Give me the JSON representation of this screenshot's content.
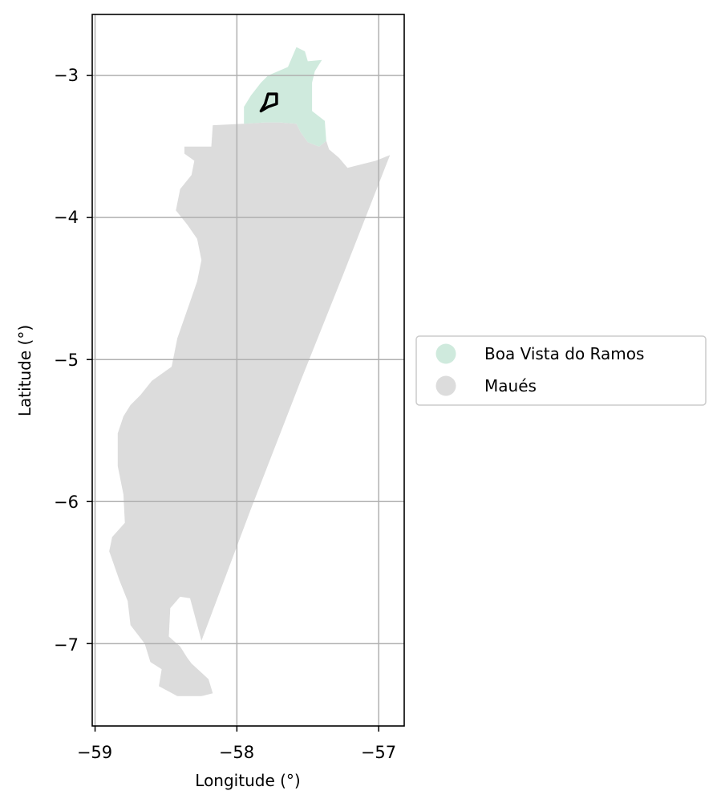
{
  "map": {
    "xlabel": "Longitude (°)",
    "ylabel": "Latitude (°)",
    "x_ticks": [
      "−59",
      "−58",
      "−57"
    ],
    "y_ticks": [
      "−3",
      "−4",
      "−5",
      "−6",
      "−7"
    ],
    "grid": true,
    "legend_placement": "center-right, outside plot",
    "legend": [
      {
        "label": "Boa Vista do Ramos",
        "color": "#cfeadd"
      },
      {
        "label": "Maués",
        "color": "#dcdcdc"
      }
    ],
    "highlight_outline_color": "#000000"
  },
  "chart_data": {
    "type": "map",
    "xlabel": "Longitude (°)",
    "ylabel": "Latitude (°)",
    "xlim": [
      -59.02,
      -56.82
    ],
    "ylim": [
      -7.58,
      -2.57
    ],
    "x_ticks": [
      -59,
      -58,
      -57
    ],
    "y_ticks": [
      -3,
      -4,
      -5,
      -6,
      -7
    ],
    "grid": true,
    "regions": [
      {
        "name": "Boa Vista do Ramos",
        "color": "#cfeadd",
        "polygon": [
          [
            -57.95,
            -3.34
          ],
          [
            -57.95,
            -3.22
          ],
          [
            -57.9,
            -3.14
          ],
          [
            -57.83,
            -3.05
          ],
          [
            -57.78,
            -3.0
          ],
          [
            -57.64,
            -2.94
          ],
          [
            -57.58,
            -2.8
          ],
          [
            -57.52,
            -2.83
          ],
          [
            -57.5,
            -2.9
          ],
          [
            -57.4,
            -2.89
          ],
          [
            -57.45,
            -2.97
          ],
          [
            -57.47,
            -3.05
          ],
          [
            -57.47,
            -3.25
          ],
          [
            -57.38,
            -3.32
          ],
          [
            -57.37,
            -3.46
          ],
          [
            -57.42,
            -3.5
          ],
          [
            -57.5,
            -3.47
          ],
          [
            -57.55,
            -3.4
          ],
          [
            -57.58,
            -3.34
          ],
          [
            -57.7,
            -3.33
          ],
          [
            -57.8,
            -3.33
          ]
        ]
      },
      {
        "name": "Maués",
        "color": "#dcdcdc",
        "polygon": [
          [
            -58.17,
            -3.35
          ],
          [
            -57.95,
            -3.34
          ],
          [
            -57.8,
            -3.33
          ],
          [
            -57.7,
            -3.33
          ],
          [
            -57.58,
            -3.34
          ],
          [
            -57.55,
            -3.4
          ],
          [
            -57.5,
            -3.47
          ],
          [
            -57.42,
            -3.5
          ],
          [
            -57.37,
            -3.46
          ],
          [
            -57.35,
            -3.52
          ],
          [
            -57.28,
            -3.58
          ],
          [
            -57.22,
            -3.65
          ],
          [
            -57.1,
            -3.62
          ],
          [
            -57.02,
            -3.6
          ],
          [
            -56.92,
            -3.56
          ],
          [
            -57.25,
            -4.4
          ],
          [
            -57.55,
            -5.15
          ],
          [
            -57.9,
            -6.05
          ],
          [
            -58.25,
            -6.98
          ],
          [
            -58.33,
            -6.68
          ],
          [
            -58.4,
            -6.67
          ],
          [
            -58.47,
            -6.75
          ],
          [
            -58.48,
            -6.95
          ],
          [
            -58.4,
            -7.02
          ],
          [
            -58.35,
            -7.1
          ],
          [
            -58.32,
            -7.14
          ],
          [
            -58.2,
            -7.25
          ],
          [
            -58.17,
            -7.35
          ],
          [
            -58.25,
            -7.37
          ],
          [
            -58.42,
            -7.37
          ],
          [
            -58.55,
            -7.3
          ],
          [
            -58.53,
            -7.18
          ],
          [
            -58.61,
            -7.13
          ],
          [
            -58.65,
            -7.0
          ],
          [
            -58.75,
            -6.87
          ],
          [
            -58.77,
            -6.7
          ],
          [
            -58.83,
            -6.55
          ],
          [
            -58.9,
            -6.35
          ],
          [
            -58.88,
            -6.25
          ],
          [
            -58.79,
            -6.15
          ],
          [
            -58.8,
            -5.95
          ],
          [
            -58.84,
            -5.75
          ],
          [
            -58.84,
            -5.52
          ],
          [
            -58.8,
            -5.4
          ],
          [
            -58.75,
            -5.32
          ],
          [
            -58.68,
            -5.25
          ],
          [
            -58.6,
            -5.15
          ],
          [
            -58.46,
            -5.05
          ],
          [
            -58.42,
            -4.85
          ],
          [
            -58.35,
            -4.65
          ],
          [
            -58.28,
            -4.45
          ],
          [
            -58.25,
            -4.3
          ],
          [
            -58.28,
            -4.15
          ],
          [
            -58.35,
            -4.05
          ],
          [
            -58.43,
            -3.95
          ],
          [
            -58.4,
            -3.8
          ],
          [
            -58.32,
            -3.7
          ],
          [
            -58.3,
            -3.6
          ],
          [
            -58.37,
            -3.55
          ],
          [
            -58.37,
            -3.5
          ],
          [
            -58.18,
            -3.5
          ]
        ]
      }
    ],
    "highlight_outline": {
      "color": "#000000",
      "polygon": [
        [
          -57.83,
          -3.25
        ],
        [
          -57.8,
          -3.2
        ],
        [
          -57.78,
          -3.13
        ],
        [
          -57.72,
          -3.13
        ],
        [
          -57.72,
          -3.2
        ],
        [
          -57.78,
          -3.22
        ]
      ]
    }
  }
}
